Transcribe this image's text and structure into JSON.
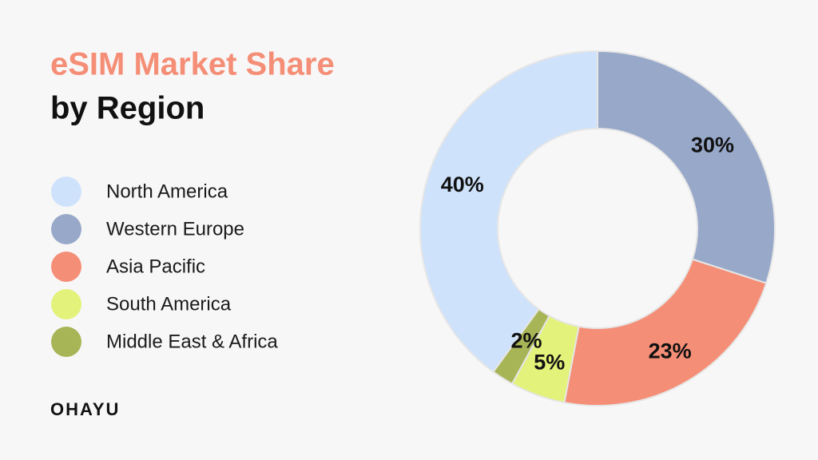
{
  "chart_data": {
    "type": "donut",
    "title": "eSIM Market Share",
    "subtitle": "by Region",
    "categories": [
      "North America",
      "Western Europe",
      "Asia Pacific",
      "South America",
      "Middle East & Africa"
    ],
    "values": [
      40,
      30,
      23,
      5,
      2
    ],
    "value_labels": [
      "40%",
      "30%",
      "23%",
      "5%",
      "2%"
    ],
    "colors": [
      "#cfe2fb",
      "#97a8c9",
      "#f58e76",
      "#e3f27a",
      "#a8b556"
    ],
    "legend": "left"
  },
  "brand": "OHAYU"
}
